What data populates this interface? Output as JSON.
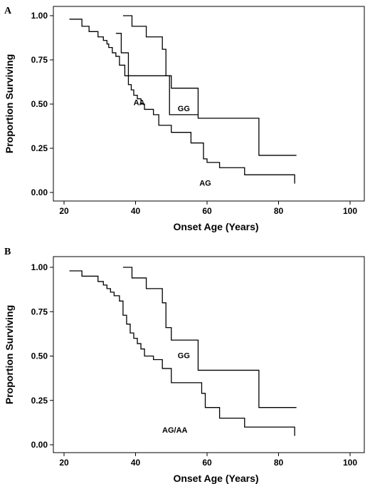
{
  "chart_data": [
    {
      "type": "line",
      "step": true,
      "panel_label": "A",
      "xlabel": "Onset Age (Years)",
      "ylabel": "Proportion Surviving",
      "xlim": [
        20,
        100
      ],
      "ylim": [
        0,
        1
      ],
      "xticks": [
        20,
        40,
        60,
        80,
        100
      ],
      "yticks": [
        0.0,
        0.25,
        0.5,
        0.75,
        1.0
      ],
      "xtick_labels": [
        "20",
        "40",
        "60",
        "80",
        "100"
      ],
      "ytick_labels": [
        "0.00",
        "0.25",
        "0.50",
        "0.75",
        "1.00"
      ],
      "grid": false,
      "series": [
        {
          "name": "AA",
          "label_at": [
            41,
            0.51
          ],
          "x": [
            34.5,
            36,
            38,
            50,
            57.5
          ],
          "y": [
            0.9,
            0.79,
            0.66,
            0.59,
            0.44
          ]
        },
        {
          "name": "GG",
          "label_at": [
            53.5,
            0.475
          ],
          "x": [
            36.5,
            39,
            43,
            47.5,
            48.5,
            49.5,
            57.5,
            74.5,
            85
          ],
          "y": [
            1.0,
            0.94,
            0.88,
            0.81,
            0.66,
            0.44,
            0.42,
            0.21,
            0.21
          ]
        },
        {
          "name": "AG",
          "label_at": [
            59.5,
            0.055
          ],
          "x": [
            21.5,
            25,
            27,
            29.5,
            31,
            32,
            32.5,
            33.5,
            34.5,
            35.5,
            37,
            38,
            38.8,
            39.5,
            40.5,
            41.5,
            42.5,
            45,
            46.5,
            50,
            55.5,
            59,
            60,
            63.5,
            70.5,
            84.5
          ],
          "y": [
            0.98,
            0.94,
            0.91,
            0.88,
            0.86,
            0.84,
            0.82,
            0.79,
            0.77,
            0.72,
            0.66,
            0.61,
            0.58,
            0.55,
            0.53,
            0.5,
            0.47,
            0.44,
            0.38,
            0.34,
            0.28,
            0.19,
            0.17,
            0.14,
            0.1,
            0.05
          ]
        }
      ]
    },
    {
      "type": "line",
      "step": true,
      "panel_label": "B",
      "xlabel": "Onset Age (Years)",
      "ylabel": "Proportion Surviving",
      "xlim": [
        20,
        100
      ],
      "ylim": [
        0,
        1
      ],
      "xticks": [
        20,
        40,
        60,
        80,
        100
      ],
      "yticks": [
        0.0,
        0.25,
        0.5,
        0.75,
        1.0
      ],
      "xtick_labels": [
        "20",
        "40",
        "60",
        "80",
        "100"
      ],
      "ytick_labels": [
        "0.00",
        "0.25",
        "0.50",
        "0.75",
        "1.00"
      ],
      "grid": false,
      "series": [
        {
          "name": "GG",
          "label_at": [
            53.5,
            0.505
          ],
          "x": [
            36.5,
            39,
            43,
            47.5,
            48.5,
            50,
            57.5,
            74.5,
            85
          ],
          "y": [
            1.0,
            0.94,
            0.88,
            0.8,
            0.66,
            0.59,
            0.42,
            0.21,
            0.21
          ]
        },
        {
          "name": "AG/AA",
          "label_at": [
            51,
            0.085
          ],
          "x": [
            21.5,
            25,
            29.5,
            31,
            32,
            33,
            34,
            35.5,
            36.5,
            37.5,
            38.5,
            39.5,
            40.5,
            41.5,
            42.5,
            45,
            47.5,
            50,
            58.5,
            59.5,
            63.5,
            70.5,
            84.5
          ],
          "y": [
            0.98,
            0.95,
            0.92,
            0.9,
            0.88,
            0.86,
            0.84,
            0.81,
            0.73,
            0.68,
            0.63,
            0.6,
            0.57,
            0.54,
            0.5,
            0.48,
            0.43,
            0.35,
            0.29,
            0.21,
            0.15,
            0.1,
            0.05
          ]
        }
      ]
    }
  ]
}
